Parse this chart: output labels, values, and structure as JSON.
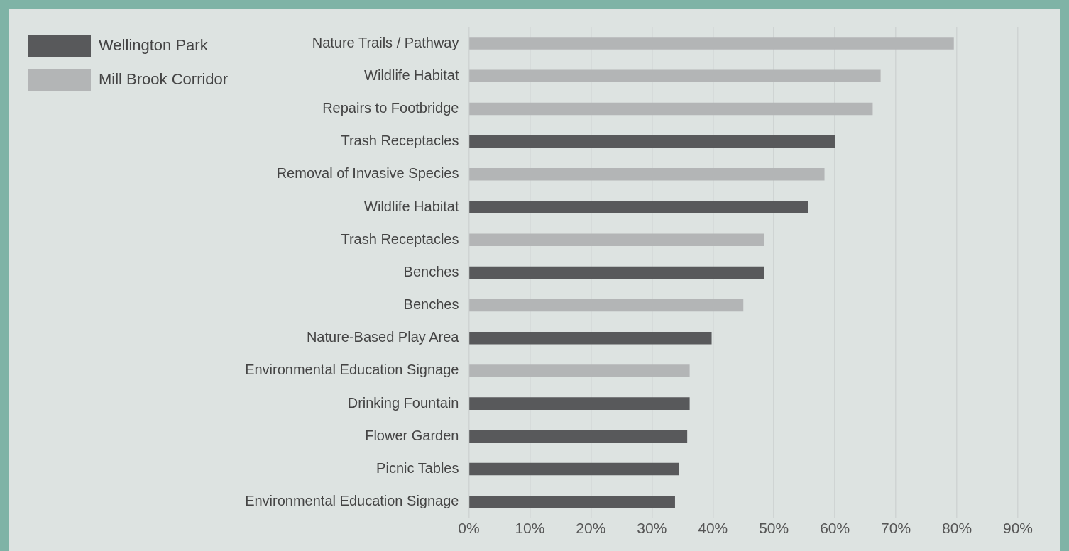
{
  "chart_data": {
    "type": "bar",
    "orientation": "horizontal",
    "stacked": true,
    "categories": [
      "Nature Trails / Pathway",
      "Wildlife Habitat",
      "Repairs to Footbridge",
      "Trash Receptacles",
      "Removal of Invasive Species",
      "Wildlife Habitat",
      "Trash Receptacles",
      "Benches",
      "Benches",
      "Nature-Based Play Area",
      "Environmental Education Signage",
      "Drinking Fountain",
      "Flower Garden",
      "Picnic Tables",
      "Environmental Education Signage"
    ],
    "series": [
      {
        "name": "Wellington Park",
        "color": "#58595b",
        "values": [
          null,
          null,
          null,
          60,
          null,
          55.6,
          null,
          48.4,
          null,
          39.8,
          null,
          36.2,
          35.8,
          34.4,
          33.8
        ]
      },
      {
        "name": "Mill Brook Corridor",
        "color": "#b3b5b6",
        "values": [
          79.5,
          67.5,
          66.2,
          null,
          58.3,
          null,
          48.4,
          null,
          45,
          null,
          36.2,
          null,
          null,
          null,
          null
        ]
      }
    ],
    "xlim": [
      0,
      90
    ],
    "xticks": [
      {
        "value": 0,
        "label": "0%"
      },
      {
        "value": 10,
        "label": "10%"
      },
      {
        "value": 20,
        "label": "20%"
      },
      {
        "value": 30,
        "label": "30%"
      },
      {
        "value": 40,
        "label": "40%"
      },
      {
        "value": 50,
        "label": "50%"
      },
      {
        "value": 60,
        "label": "60%"
      },
      {
        "value": 70,
        "label": "70%"
      },
      {
        "value": 80,
        "label": "80%"
      },
      {
        "value": 90,
        "label": "90%"
      }
    ],
    "grid": "x",
    "legend": "top left"
  }
}
